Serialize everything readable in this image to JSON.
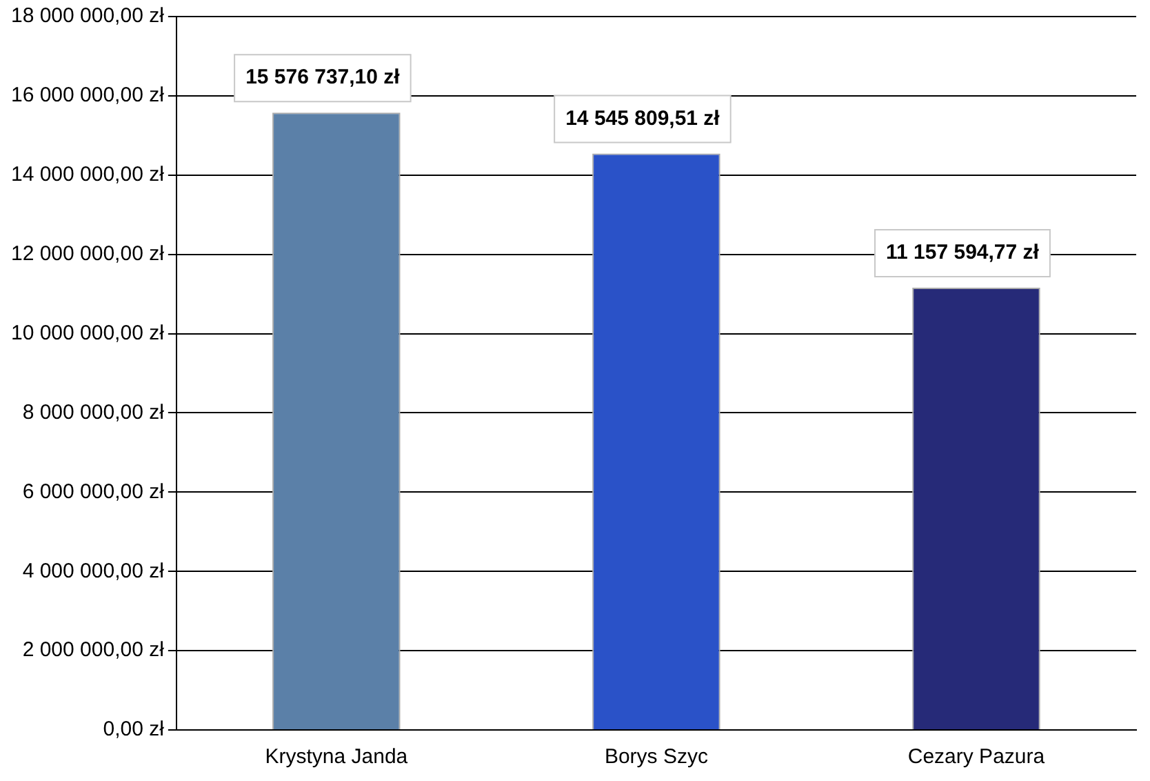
{
  "chart_data": {
    "type": "bar",
    "categories": [
      "Krystyna Janda",
      "Borys Szyc",
      "Cezary Pazura"
    ],
    "values": [
      15576737.1,
      14545809.51,
      11157594.77
    ],
    "colors": [
      "#5b80a8",
      "#2a52c8",
      "#262a78"
    ],
    "value_labels": [
      "15 576 737,10 zł",
      "14 545 809,51 zł",
      "11 157 594,77 zł"
    ],
    "ylim": [
      0,
      18000000
    ],
    "yticks": [
      {
        "value": 0,
        "label": "0,00 zł"
      },
      {
        "value": 2000000,
        "label": "2 000 000,00 zł"
      },
      {
        "value": 4000000,
        "label": "4 000 000,00 zł"
      },
      {
        "value": 6000000,
        "label": "6 000 000,00 zł"
      },
      {
        "value": 8000000,
        "label": "8 000 000,00 zł"
      },
      {
        "value": 10000000,
        "label": "10 000 000,00 zł"
      },
      {
        "value": 12000000,
        "label": "12 000 000,00 zł"
      },
      {
        "value": 14000000,
        "label": "14 000 000,00 zł"
      },
      {
        "value": 16000000,
        "label": "16 000 000,00 zł"
      },
      {
        "value": 18000000,
        "label": "18 000 000,00 zł"
      }
    ],
    "grid": "y"
  }
}
